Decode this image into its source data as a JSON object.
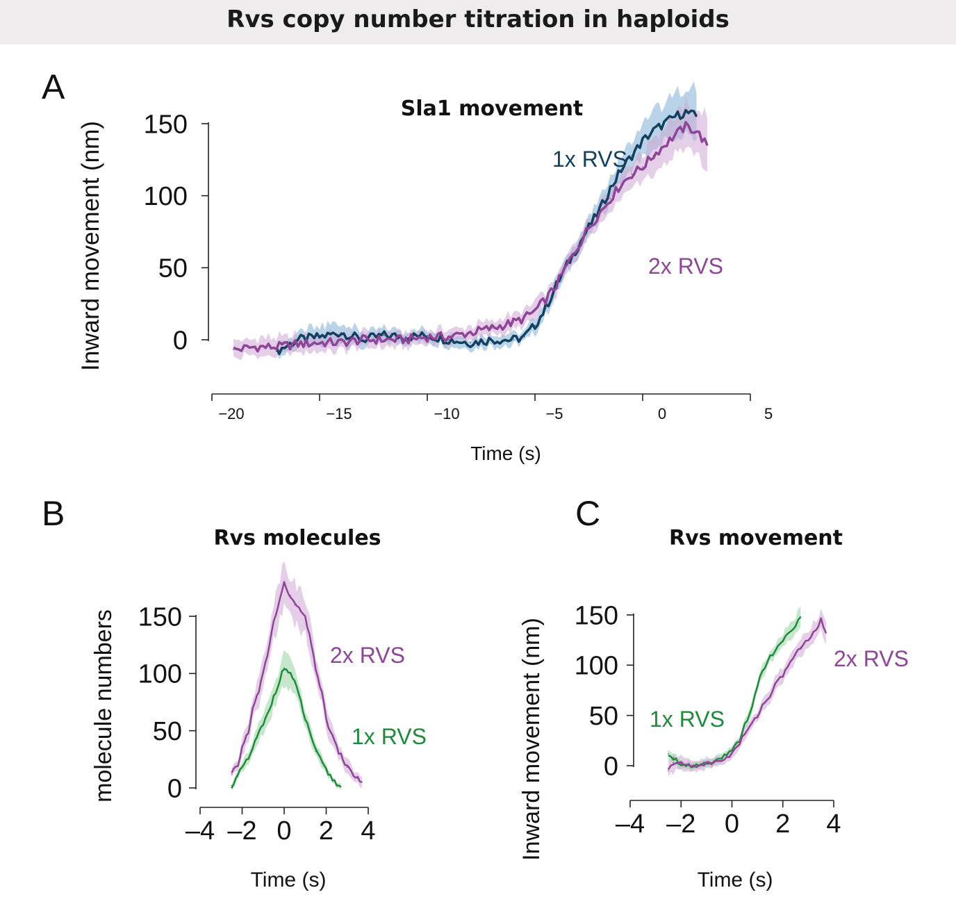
{
  "header": {
    "title": "Rvs copy number titration in haploids"
  },
  "colors": {
    "navy": "#12405f",
    "navy_band": "#7fb0d6",
    "purple": "#8e4497",
    "purple_band": "#cfa6d3",
    "green": "#1f8a3b",
    "green_band": "#98d3a3"
  },
  "chart_data": [
    {
      "panel": "A",
      "type": "line",
      "title": "Sla1 movement",
      "xlabel": "Time (s)",
      "ylabel": "Inward movement (nm)",
      "xlim": [
        -20,
        5
      ],
      "ylim": [
        -25,
        160
      ],
      "xticks": [
        -20,
        -15,
        -10,
        -5,
        0,
        5
      ],
      "xtick_labels": [
        "−20",
        "−15",
        "−10",
        "−5",
        "0",
        "5"
      ],
      "yticks": [
        0,
        50,
        100,
        150
      ],
      "ytick_labels": [
        "0",
        "50",
        "100",
        "150"
      ],
      "series": [
        {
          "name": "1x RVS",
          "color": "navy",
          "band_color": "navy_band",
          "x": [
            -17,
            -16,
            -15,
            -14,
            -13,
            -12,
            -11,
            -10,
            -9,
            -8,
            -7,
            -6,
            -5.5,
            -5,
            -4.5,
            -4,
            -3.5,
            -3,
            -2.5,
            -2,
            -1.5,
            -1,
            -0.5,
            0,
            0.5,
            1,
            1.5,
            2,
            2.5
          ],
          "y": [
            -8,
            0,
            2,
            5,
            0,
            3,
            2,
            3,
            0,
            -2,
            0,
            0,
            2,
            10,
            22,
            38,
            52,
            65,
            78,
            90,
            105,
            118,
            128,
            138,
            145,
            150,
            155,
            158,
            155
          ],
          "spread": [
            4,
            6,
            7,
            7,
            6,
            5,
            4,
            4,
            4,
            4,
            4,
            4,
            4,
            5,
            6,
            6,
            6,
            6,
            6,
            7,
            7,
            8,
            9,
            10,
            12,
            14,
            15,
            16,
            16
          ]
        },
        {
          "name": "2x RVS",
          "color": "purple",
          "band_color": "purple_band",
          "x": [
            -19,
            -18,
            -17,
            -16,
            -15,
            -14,
            -13,
            -12,
            -11,
            -10,
            -9,
            -8,
            -7,
            -6,
            -5.5,
            -5,
            -4.5,
            -4,
            -3.5,
            -3,
            -2.5,
            -2,
            -1.5,
            -1,
            -0.5,
            0,
            0.5,
            1,
            1.5,
            2,
            2.5,
            3
          ],
          "y": [
            -7,
            -5,
            -5,
            -3,
            -2,
            -2,
            0,
            0,
            0,
            2,
            2,
            5,
            8,
            12,
            15,
            20,
            28,
            38,
            52,
            65,
            78,
            88,
            98,
            108,
            115,
            120,
            128,
            135,
            142,
            148,
            145,
            135
          ],
          "spread": [
            6,
            6,
            6,
            6,
            6,
            6,
            5,
            5,
            5,
            5,
            5,
            5,
            5,
            5,
            6,
            6,
            6,
            6,
            6,
            6,
            7,
            7,
            8,
            8,
            9,
            10,
            11,
            12,
            13,
            14,
            15,
            18
          ]
        }
      ],
      "annotations": [
        {
          "text": "1x RVS",
          "color": "navy"
        },
        {
          "text": "2x RVS",
          "color": "purple"
        }
      ]
    },
    {
      "panel": "B",
      "type": "line",
      "title": "Rvs molecules",
      "xlabel": "Time (s)",
      "ylabel": "molecule numbers",
      "xlim": [
        -4,
        4
      ],
      "ylim": [
        -5,
        180
      ],
      "xticks": [
        -4,
        -2,
        0,
        2,
        4
      ],
      "xtick_labels": [
        "–4",
        "–2",
        "0",
        "2",
        "4"
      ],
      "yticks": [
        0,
        50,
        100,
        150
      ],
      "ytick_labels": [
        "0",
        "50",
        "100",
        "150"
      ],
      "series": [
        {
          "name": "2x RVS",
          "color": "purple",
          "band_color": "purple_band",
          "x": [
            -2.5,
            -2.2,
            -2,
            -1.7,
            -1.5,
            -1.2,
            -1,
            -0.7,
            -0.5,
            -0.2,
            0,
            0.3,
            0.5,
            0.8,
            1,
            1.3,
            1.5,
            1.8,
            2,
            2.3,
            2.5,
            2.8,
            3,
            3.3,
            3.5,
            3.7
          ],
          "y": [
            12,
            20,
            35,
            50,
            68,
            85,
            100,
            125,
            145,
            165,
            178,
            168,
            160,
            155,
            148,
            125,
            105,
            82,
            60,
            45,
            35,
            25,
            18,
            12,
            8,
            5
          ],
          "spread": [
            5,
            6,
            7,
            9,
            10,
            12,
            13,
            15,
            17,
            19,
            20,
            19,
            18,
            17,
            16,
            14,
            12,
            10,
            9,
            8,
            7,
            6,
            6,
            5,
            5,
            5
          ]
        },
        {
          "name": "1x RVS",
          "color": "green",
          "band_color": "green_band",
          "x": [
            -2.5,
            -2.2,
            -2,
            -1.7,
            -1.5,
            -1.2,
            -1,
            -0.7,
            -0.5,
            -0.2,
            0,
            0.3,
            0.5,
            0.8,
            1,
            1.3,
            1.5,
            1.8,
            2,
            2.3,
            2.5,
            2.7
          ],
          "y": [
            2,
            10,
            18,
            25,
            35,
            48,
            55,
            68,
            80,
            95,
            105,
            100,
            92,
            75,
            60,
            45,
            32,
            22,
            15,
            8,
            3,
            1
          ],
          "spread": [
            3,
            4,
            5,
            6,
            7,
            8,
            9,
            10,
            11,
            13,
            14,
            13,
            12,
            10,
            9,
            7,
            6,
            5,
            4,
            3,
            3,
            3
          ]
        }
      ],
      "annotations": [
        {
          "text": "2x RVS",
          "color": "purple"
        },
        {
          "text": "1x RVS",
          "color": "green"
        }
      ]
    },
    {
      "panel": "C",
      "type": "line",
      "title": "Rvs movement",
      "xlabel": "Time (s)",
      "ylabel": "Inward movement (nm)",
      "xlim": [
        -4,
        4
      ],
      "ylim": [
        0,
        160
      ],
      "xticks": [
        -4,
        -2,
        0,
        2,
        4
      ],
      "xtick_labels": [
        "–4",
        "–2",
        "0",
        "2",
        "4"
      ],
      "yticks": [
        0,
        50,
        100,
        150
      ],
      "ytick_labels": [
        "0",
        "50",
        "100",
        "150"
      ],
      "series": [
        {
          "name": "1x RVS",
          "color": "green",
          "band_color": "green_band",
          "x": [
            -2.5,
            -2.3,
            -2,
            -1.7,
            -1.5,
            -1.2,
            -1,
            -0.7,
            -0.5,
            -0.2,
            0,
            0.3,
            0.5,
            0.8,
            1,
            1.2,
            1.5,
            1.7,
            2,
            2.2,
            2.5,
            2.7
          ],
          "y": [
            12,
            8,
            2,
            0,
            0,
            2,
            3,
            5,
            7,
            10,
            15,
            25,
            40,
            60,
            80,
            95,
            108,
            115,
            125,
            132,
            140,
            148
          ],
          "spread": [
            6,
            5,
            4,
            4,
            4,
            4,
            4,
            4,
            4,
            4,
            4,
            4,
            5,
            5,
            6,
            6,
            6,
            7,
            7,
            8,
            9,
            10
          ]
        },
        {
          "name": "2x RVS",
          "color": "purple",
          "band_color": "purple_band",
          "x": [
            -2.5,
            -2.3,
            -2,
            -1.7,
            -1.5,
            -1.2,
            -1,
            -0.7,
            -0.5,
            -0.2,
            0,
            0.3,
            0.5,
            0.8,
            1,
            1.2,
            1.5,
            1.7,
            2,
            2.2,
            2.5,
            2.7,
            3,
            3.2,
            3.5,
            3.7
          ],
          "y": [
            -5,
            3,
            2,
            0,
            0,
            1,
            2,
            3,
            5,
            8,
            12,
            22,
            32,
            42,
            50,
            60,
            70,
            80,
            90,
            100,
            110,
            118,
            125,
            132,
            145,
            132
          ],
          "spread": [
            10,
            8,
            6,
            5,
            5,
            5,
            5,
            5,
            5,
            5,
            5,
            5,
            6,
            6,
            6,
            6,
            7,
            7,
            7,
            8,
            8,
            9,
            9,
            10,
            10,
            11
          ]
        }
      ],
      "annotations": [
        {
          "text": "1x RVS",
          "color": "green"
        },
        {
          "text": "2x RVS",
          "color": "purple"
        }
      ]
    }
  ]
}
